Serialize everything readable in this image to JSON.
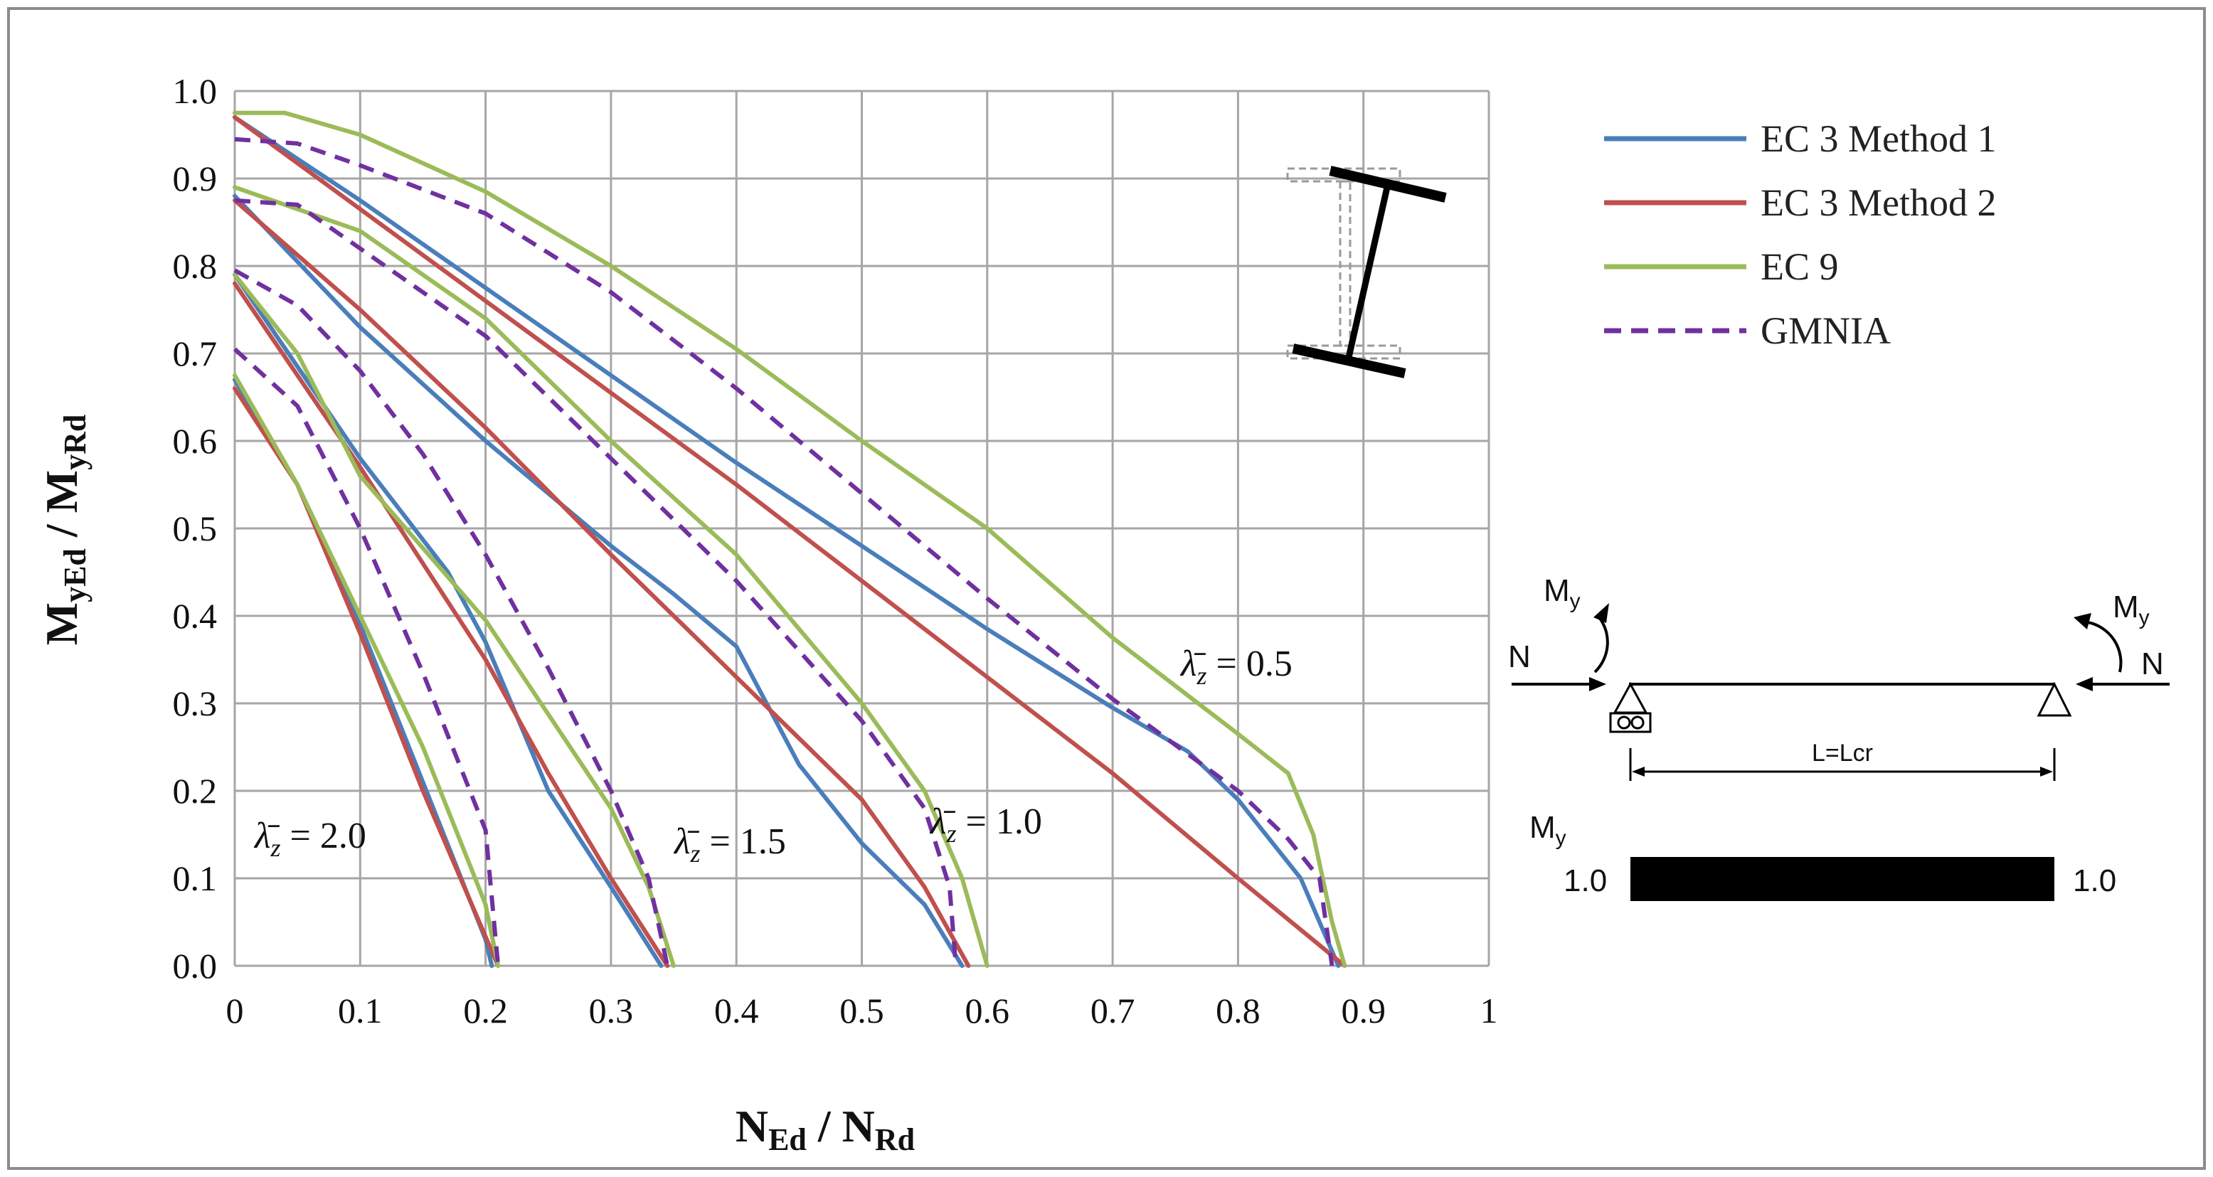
{
  "chart_data": {
    "type": "line",
    "xlabel": {
      "main": "N",
      "sub1": "Ed",
      "sep": " / ",
      "main2": "N",
      "sub2": "Rd"
    },
    "ylabel": {
      "main": "M",
      "sub1": "yEd",
      "sep": " / ",
      "main2": "M",
      "sub2": "yRd"
    },
    "xlim": [
      0,
      1
    ],
    "ylim": [
      0,
      1
    ],
    "x_ticks": [
      0,
      0.1,
      0.2,
      0.3,
      0.4,
      0.5,
      0.6,
      0.7,
      0.8,
      0.9,
      1
    ],
    "x_tick_labels": [
      "0",
      "0.1",
      "0.2",
      "0.3",
      "0.4",
      "0.5",
      "0.6",
      "0.7",
      "0.8",
      "0.9",
      "1"
    ],
    "y_ticks": [
      0,
      0.1,
      0.2,
      0.3,
      0.4,
      0.5,
      0.6,
      0.7,
      0.8,
      0.9,
      1.0
    ],
    "y_tick_labels": [
      "0.0",
      "0.1",
      "0.2",
      "0.3",
      "0.4",
      "0.5",
      "0.6",
      "0.7",
      "0.8",
      "0.9",
      "1.0"
    ],
    "grid": true,
    "legend_position": "right",
    "colors": {
      "ec3m1": "#4a7ebb",
      "ec3m2": "#c0504d",
      "ec9": "#9bbb59",
      "gmnia": "#7030a0",
      "grid": "#a6a6a6"
    },
    "legend": [
      {
        "key": "ec3m1",
        "label": "EC 3 Method 1",
        "dashed": false
      },
      {
        "key": "ec3m2",
        "label": "EC 3 Method 2",
        "dashed": false
      },
      {
        "key": "ec9",
        "label": "EC 9",
        "dashed": false
      },
      {
        "key": "gmnia",
        "label": "GMNIA",
        "dashed": true
      }
    ],
    "series": [
      {
        "group": "0.5",
        "method": "ec3m1",
        "points": [
          [
            0,
            0.97
          ],
          [
            0.1,
            0.875
          ],
          [
            0.2,
            0.775
          ],
          [
            0.3,
            0.675
          ],
          [
            0.4,
            0.575
          ],
          [
            0.5,
            0.48
          ],
          [
            0.6,
            0.385
          ],
          [
            0.7,
            0.295
          ],
          [
            0.76,
            0.245
          ],
          [
            0.8,
            0.19
          ],
          [
            0.85,
            0.1
          ],
          [
            0.88,
            0
          ]
        ]
      },
      {
        "group": "0.5",
        "method": "ec3m2",
        "points": [
          [
            0,
            0.97
          ],
          [
            0.1,
            0.865
          ],
          [
            0.2,
            0.76
          ],
          [
            0.3,
            0.655
          ],
          [
            0.4,
            0.55
          ],
          [
            0.5,
            0.44
          ],
          [
            0.6,
            0.33
          ],
          [
            0.7,
            0.22
          ],
          [
            0.8,
            0.1
          ],
          [
            0.885,
            0
          ]
        ]
      },
      {
        "group": "0.5",
        "method": "ec9",
        "points": [
          [
            0,
            0.975
          ],
          [
            0.04,
            0.975
          ],
          [
            0.1,
            0.95
          ],
          [
            0.2,
            0.885
          ],
          [
            0.3,
            0.8
          ],
          [
            0.4,
            0.705
          ],
          [
            0.5,
            0.6
          ],
          [
            0.6,
            0.5
          ],
          [
            0.7,
            0.375
          ],
          [
            0.8,
            0.265
          ],
          [
            0.84,
            0.22
          ],
          [
            0.86,
            0.15
          ],
          [
            0.875,
            0.05
          ],
          [
            0.885,
            0
          ]
        ]
      },
      {
        "group": "0.5",
        "method": "gmnia",
        "points": [
          [
            0,
            0.945
          ],
          [
            0.05,
            0.94
          ],
          [
            0.1,
            0.915
          ],
          [
            0.2,
            0.86
          ],
          [
            0.3,
            0.77
          ],
          [
            0.4,
            0.66
          ],
          [
            0.5,
            0.54
          ],
          [
            0.6,
            0.42
          ],
          [
            0.7,
            0.305
          ],
          [
            0.8,
            0.2
          ],
          [
            0.84,
            0.145
          ],
          [
            0.865,
            0.1
          ],
          [
            0.875,
            0
          ]
        ]
      },
      {
        "group": "1.0",
        "method": "ec3m1",
        "points": [
          [
            0,
            0.88
          ],
          [
            0.1,
            0.73
          ],
          [
            0.2,
            0.6
          ],
          [
            0.3,
            0.48
          ],
          [
            0.35,
            0.425
          ],
          [
            0.4,
            0.365
          ],
          [
            0.45,
            0.23
          ],
          [
            0.5,
            0.14
          ],
          [
            0.55,
            0.07
          ],
          [
            0.58,
            0
          ]
        ]
      },
      {
        "group": "1.0",
        "method": "ec3m2",
        "points": [
          [
            0,
            0.875
          ],
          [
            0.1,
            0.75
          ],
          [
            0.2,
            0.615
          ],
          [
            0.3,
            0.47
          ],
          [
            0.4,
            0.33
          ],
          [
            0.5,
            0.19
          ],
          [
            0.55,
            0.09
          ],
          [
            0.585,
            0
          ]
        ]
      },
      {
        "group": "1.0",
        "method": "ec9",
        "points": [
          [
            0,
            0.89
          ],
          [
            0.1,
            0.84
          ],
          [
            0.2,
            0.74
          ],
          [
            0.3,
            0.6
          ],
          [
            0.4,
            0.47
          ],
          [
            0.5,
            0.3
          ],
          [
            0.55,
            0.2
          ],
          [
            0.58,
            0.1
          ],
          [
            0.6,
            0
          ]
        ]
      },
      {
        "group": "1.0",
        "method": "gmnia",
        "points": [
          [
            0,
            0.875
          ],
          [
            0.05,
            0.87
          ],
          [
            0.1,
            0.82
          ],
          [
            0.2,
            0.72
          ],
          [
            0.3,
            0.58
          ],
          [
            0.4,
            0.44
          ],
          [
            0.5,
            0.28
          ],
          [
            0.55,
            0.18
          ],
          [
            0.57,
            0.09
          ],
          [
            0.575,
            0
          ]
        ]
      },
      {
        "group": "1.5",
        "method": "ec3m1",
        "points": [
          [
            0,
            0.79
          ],
          [
            0.1,
            0.58
          ],
          [
            0.17,
            0.45
          ],
          [
            0.2,
            0.37
          ],
          [
            0.25,
            0.2
          ],
          [
            0.3,
            0.09
          ],
          [
            0.34,
            0
          ]
        ]
      },
      {
        "group": "1.5",
        "method": "ec3m2",
        "points": [
          [
            0,
            0.78
          ],
          [
            0.1,
            0.57
          ],
          [
            0.2,
            0.35
          ],
          [
            0.25,
            0.22
          ],
          [
            0.3,
            0.1
          ],
          [
            0.345,
            0
          ]
        ]
      },
      {
        "group": "1.5",
        "method": "ec9",
        "points": [
          [
            0,
            0.79
          ],
          [
            0.05,
            0.7
          ],
          [
            0.1,
            0.56
          ],
          [
            0.2,
            0.395
          ],
          [
            0.3,
            0.18
          ],
          [
            0.33,
            0.09
          ],
          [
            0.35,
            0
          ]
        ]
      },
      {
        "group": "1.5",
        "method": "gmnia",
        "points": [
          [
            0,
            0.795
          ],
          [
            0.05,
            0.755
          ],
          [
            0.1,
            0.68
          ],
          [
            0.15,
            0.585
          ],
          [
            0.2,
            0.47
          ],
          [
            0.25,
            0.34
          ],
          [
            0.3,
            0.2
          ],
          [
            0.33,
            0.1
          ],
          [
            0.345,
            0
          ]
        ]
      },
      {
        "group": "2.0",
        "method": "ec3m1",
        "points": [
          [
            0,
            0.67
          ],
          [
            0.05,
            0.55
          ],
          [
            0.1,
            0.39
          ],
          [
            0.15,
            0.21
          ],
          [
            0.2,
            0.03
          ],
          [
            0.205,
            0
          ]
        ]
      },
      {
        "group": "2.0",
        "method": "ec3m2",
        "points": [
          [
            0,
            0.66
          ],
          [
            0.05,
            0.55
          ],
          [
            0.1,
            0.38
          ],
          [
            0.15,
            0.2
          ],
          [
            0.21,
            0
          ]
        ]
      },
      {
        "group": "2.0",
        "method": "ec9",
        "points": [
          [
            0,
            0.675
          ],
          [
            0.05,
            0.55
          ],
          [
            0.1,
            0.4
          ],
          [
            0.15,
            0.25
          ],
          [
            0.2,
            0.07
          ],
          [
            0.21,
            0
          ]
        ]
      },
      {
        "group": "2.0",
        "method": "gmnia",
        "points": [
          [
            0,
            0.705
          ],
          [
            0.05,
            0.64
          ],
          [
            0.1,
            0.5
          ],
          [
            0.15,
            0.335
          ],
          [
            0.2,
            0.155
          ],
          [
            0.21,
            0
          ]
        ]
      }
    ],
    "annotations": [
      {
        "symbol": "λ̄",
        "sub": "z",
        "text": " = 0.5"
      },
      {
        "symbol": "λ̄",
        "sub": "z",
        "text": " = 1.0"
      },
      {
        "symbol": "λ̄",
        "sub": "z",
        "text": " = 1.5"
      },
      {
        "symbol": "λ̄",
        "sub": "z",
        "text": " = 2.0"
      }
    ]
  },
  "schematic": {
    "moment_label": "M",
    "moment_sub": "y",
    "axial_label": "N",
    "length_label": "L=Lcr",
    "diagram_label": "M",
    "diagram_sub": "y",
    "left_value": "1.0",
    "right_value": "1.0"
  }
}
